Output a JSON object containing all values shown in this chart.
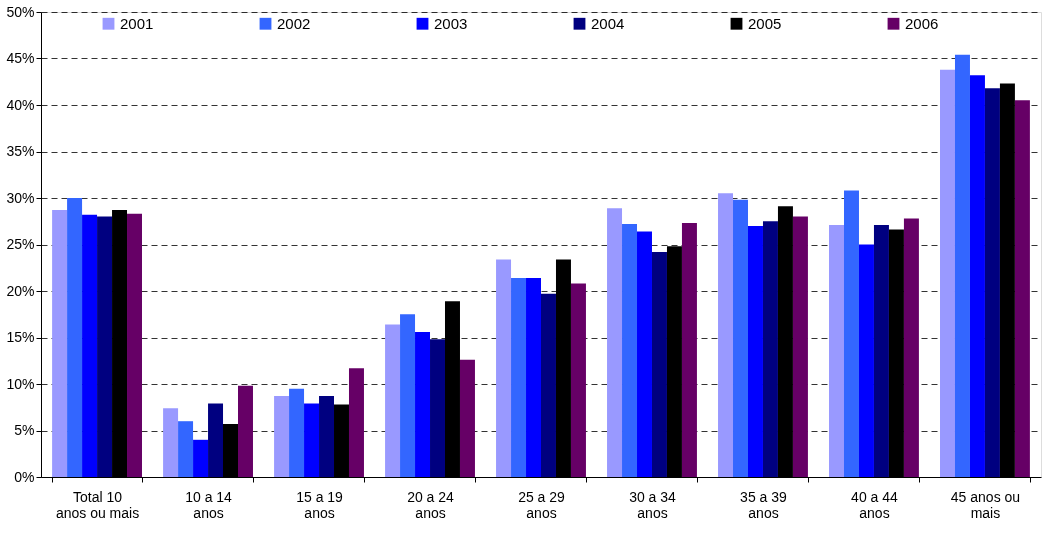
{
  "chart_data": {
    "type": "bar",
    "categories": [
      "Total 10\nanos ou mais",
      "10 a 14\nanos",
      "15 a 19\nanos",
      "20 a 24\nanos",
      "25 a 29\nanos",
      "30 a 34\nanos",
      "35 a 39\nanos",
      "40 a 44\nanos",
      "45 anos ou\nmais"
    ],
    "series": [
      {
        "name": "2001",
        "color": "#9999ff",
        "values": [
          28.7,
          7.4,
          8.7,
          16.4,
          23.4,
          28.9,
          30.5,
          27.1,
          43.8
        ]
      },
      {
        "name": "2002",
        "color": "#3366ff",
        "values": [
          30.0,
          6.0,
          9.5,
          17.5,
          21.4,
          27.2,
          29.8,
          30.8,
          45.4
        ]
      },
      {
        "name": "2003",
        "color": "#0000ff",
        "values": [
          28.2,
          4.0,
          7.9,
          15.6,
          21.4,
          26.4,
          27.0,
          25.0,
          43.2
        ]
      },
      {
        "name": "2004",
        "color": "#000080",
        "values": [
          28.0,
          7.9,
          8.7,
          14.8,
          19.7,
          24.2,
          27.5,
          27.1,
          41.8
        ]
      },
      {
        "name": "2005",
        "color": "#000000",
        "values": [
          28.7,
          5.7,
          7.8,
          18.9,
          23.4,
          24.8,
          29.1,
          26.6,
          42.3
        ]
      },
      {
        "name": "2006",
        "color": "#660066",
        "values": [
          28.3,
          9.8,
          11.7,
          12.6,
          20.8,
          27.3,
          28.0,
          27.8,
          40.5
        ]
      }
    ],
    "ylim": [
      0,
      50
    ],
    "yticks": [
      {
        "value": 0,
        "label": "0%"
      },
      {
        "value": 5,
        "label": "5%"
      },
      {
        "value": 10,
        "label": "10%"
      },
      {
        "value": 15,
        "label": "15%"
      },
      {
        "value": 20,
        "label": "20%"
      },
      {
        "value": 25,
        "label": "25%"
      },
      {
        "value": 30,
        "label": "30%"
      },
      {
        "value": 35,
        "label": "35%"
      },
      {
        "value": 40,
        "label": "40%"
      },
      {
        "value": 45,
        "label": "45%"
      },
      {
        "value": 50,
        "label": "50%"
      }
    ],
    "grid": "y",
    "legend": "top"
  }
}
